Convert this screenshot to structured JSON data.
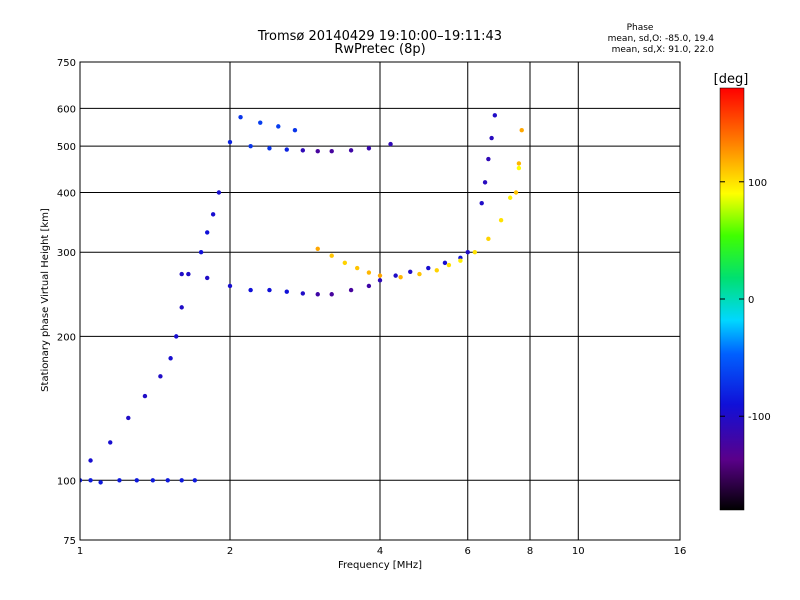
{
  "chart_data": {
    "type": "scatter",
    "title": "Tromsø 20140429  19:10:00–19:11:43",
    "subtitle": "RwPretec (8p)",
    "xlabel": "Frequency [MHz]",
    "ylabel": "Stationary phase Virtual Height [km]",
    "x_scale": "log",
    "y_scale": "log",
    "xlim": [
      1,
      16
    ],
    "ylim": [
      75,
      750
    ],
    "x_ticks": [
      "1",
      "2",
      "4",
      "6",
      "8",
      "10",
      "16"
    ],
    "y_ticks": [
      "75",
      "100",
      "200",
      "300",
      "400",
      "500",
      "600",
      "750"
    ],
    "grid": true,
    "stats_title": "Phase",
    "stats_o": "mean, sd,O: -85.0, 19.4",
    "stats_x": "mean, sd,X:  91.0, 22.0",
    "colorbar": {
      "label": "[deg]",
      "range": [
        -180,
        180
      ],
      "ticks": [
        "100",
        "0",
        "-100"
      ],
      "tick_values": [
        100,
        0,
        -100
      ]
    },
    "series": [
      {
        "name": "",
        "x": [
          1.0,
          1.05,
          1.1,
          1.2,
          1.3,
          1.4,
          1.5,
          1.6,
          1.7
        ],
        "y": [
          100,
          100,
          99,
          100,
          100,
          100,
          100,
          100,
          100
        ],
        "phase": [
          -85,
          -85,
          -85,
          -85,
          -85,
          -85,
          -85,
          -85,
          -85
        ]
      },
      {
        "name": "",
        "x": [
          1.05,
          1.15,
          1.25,
          1.35,
          1.45,
          1.52,
          1.56,
          1.6,
          1.65,
          1.75,
          1.8,
          1.85,
          1.9
        ],
        "y": [
          110,
          120,
          135,
          150,
          165,
          180,
          200,
          230,
          270,
          300,
          330,
          360,
          400
        ],
        "phase": [
          -95,
          -95,
          -100,
          -100,
          -100,
          -95,
          -95,
          -100,
          -100,
          -90,
          -90,
          -95,
          -95
        ]
      },
      {
        "name": "",
        "x": [
          1.6,
          1.8,
          2.0,
          2.2,
          2.4,
          2.6,
          2.8,
          3.0,
          3.2,
          3.5,
          3.8,
          4.0,
          4.3,
          4.6,
          5.0,
          5.4,
          5.8,
          6.0
        ],
        "y": [
          270,
          265,
          255,
          250,
          250,
          248,
          246,
          245,
          245,
          250,
          255,
          262,
          268,
          273,
          278,
          285,
          292,
          300
        ],
        "phase": [
          -100,
          -100,
          -95,
          -90,
          -90,
          -90,
          -100,
          -120,
          -125,
          -125,
          -120,
          -110,
          -100,
          -100,
          -95,
          -95,
          -90,
          -100
        ]
      },
      {
        "name": "",
        "x": [
          2.0,
          2.2,
          2.4,
          2.6,
          2.8,
          3.0,
          3.2,
          3.5,
          3.8,
          4.2
        ],
        "y": [
          510,
          500,
          495,
          492,
          490,
          488,
          488,
          490,
          495,
          505
        ],
        "phase": [
          -80,
          -70,
          -70,
          -80,
          -110,
          -125,
          -125,
          -120,
          -115,
          -110
        ]
      },
      {
        "name": "",
        "x": [
          2.1,
          2.3,
          2.5,
          2.7
        ],
        "y": [
          575,
          560,
          550,
          540
        ],
        "phase": [
          -70,
          -65,
          -65,
          -70
        ]
      },
      {
        "name": "",
        "x": [
          3.0,
          3.2,
          3.4,
          3.6,
          3.8,
          4.0,
          4.4,
          4.8,
          5.2,
          5.5,
          5.8,
          6.2,
          6.6,
          7.0,
          7.3,
          7.6
        ],
        "y": [
          305,
          295,
          285,
          278,
          272,
          268,
          266,
          270,
          275,
          282,
          288,
          300,
          320,
          350,
          390,
          450
        ],
        "phase": [
          120,
          110,
          105,
          110,
          115,
          120,
          115,
          110,
          105,
          100,
          95,
          100,
          105,
          100,
          95,
          90
        ]
      },
      {
        "name": "",
        "x": [
          6.4,
          6.5,
          6.6,
          6.7,
          6.8
        ],
        "y": [
          380,
          420,
          470,
          520,
          580
        ],
        "phase": [
          -100,
          -105,
          -110,
          -105,
          -100
        ]
      },
      {
        "name": "",
        "x": [
          7.5,
          7.6,
          7.7
        ],
        "y": [
          400,
          460,
          540
        ],
        "phase": [
          110,
          115,
          120
        ]
      }
    ]
  }
}
